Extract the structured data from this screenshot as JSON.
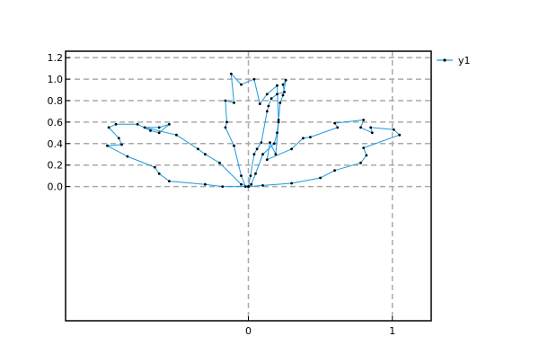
{
  "chart_data": {
    "type": "line",
    "title": "",
    "xlabel": "",
    "ylabel": "",
    "xlim": [
      -1.27,
      1.27
    ],
    "ylim": [
      -1.25,
      1.26
    ],
    "x_ticks": [
      0,
      1
    ],
    "x_tick_labels": [
      "0",
      "1"
    ],
    "y_ticks": [
      0.0,
      0.2,
      0.4,
      0.6,
      0.8,
      1.0,
      1.2
    ],
    "y_tick_labels": [
      "0.0",
      "0.2",
      "0.4",
      "0.6",
      "0.8",
      "1.0",
      "1.2"
    ],
    "grid": true,
    "grid_style": "dashed",
    "legend_position": "outside-right",
    "colors": {
      "line": "#1a9be0",
      "marker": "#000000",
      "grid": "#aaaaaa",
      "axes": "#000000",
      "background": "#ffffff"
    },
    "series": [
      {
        "name": "y1",
        "x": [
          0.0,
          0.015,
          0.025,
          0.045,
          0.06,
          0.12,
          0.16,
          0.18,
          0.19,
          0.2,
          0.22,
          0.24,
          0.25,
          0.26,
          0.28,
          0.15,
          0.16,
          0.13,
          0.07,
          0.02,
          0.01,
          -0.02,
          -0.05,
          -0.1,
          -0.1,
          -0.03,
          0.0,
          -0.03,
          -0.1,
          -0.15,
          -0.16,
          -0.17,
          -0.16,
          -0.17,
          -0.24,
          -0.22,
          -0.18,
          -0.12,
          -0.06,
          -0.04,
          0.0,
          0.05,
          0.07,
          0.1,
          0.18,
          0.24,
          0.3,
          0.36,
          0.38,
          0.5,
          0.52,
          0.55,
          0.62,
          0.58,
          0.8,
          0.82,
          0.85,
          0.86,
          1.0,
          1.05,
          0.82,
          0.78,
          0.6,
          0.45,
          0.3,
          0.2,
          0.15,
          0.1,
          0.05,
          0.01
        ],
        "y": [
          0.0,
          0.03,
          0.1,
          0.22,
          0.28,
          0.33,
          0.42,
          0.45,
          0.46,
          0.48,
          0.52,
          0.55,
          0.58,
          0.62,
          0.7,
          0.76,
          0.8,
          0.86,
          0.92,
          0.97,
          1.0,
          0.98,
          1.05,
          0.8,
          0.8,
          0.82,
          0.55,
          0.5,
          0.42,
          0.55,
          0.6,
          0.43,
          0.38,
          0.3,
          0.2,
          0.12,
          0.07,
          0.04,
          0.02,
          0.01,
          0.0,
          0.02,
          0.05,
          0.1,
          0.18,
          0.28,
          0.34,
          0.35,
          0.37,
          0.55,
          0.58,
          0.6,
          0.62,
          0.6,
          0.55,
          0.58,
          0.52,
          0.52,
          0.55,
          0.48,
          0.32,
          0.28,
          0.23,
          0.15,
          0.1,
          0.07,
          0.04,
          0.02,
          0.01,
          0.0
        ]
      }
    ],
    "trace": [
      [
        0.0,
        0.0
      ],
      [
        0.015,
        0.1
      ],
      [
        0.04,
        0.3
      ],
      [
        0.06,
        0.35
      ],
      [
        0.09,
        0.41
      ],
      [
        0.13,
        0.7
      ],
      [
        0.14,
        0.75
      ],
      [
        0.16,
        0.82
      ],
      [
        0.2,
        0.86
      ],
      [
        0.25,
        0.88
      ],
      [
        0.24,
        0.95
      ],
      [
        0.26,
        0.99
      ],
      [
        0.24,
        0.85
      ],
      [
        0.22,
        0.78
      ],
      [
        0.21,
        0.62
      ],
      [
        0.2,
        0.5
      ],
      [
        0.18,
        0.4
      ],
      [
        0.1,
        0.3
      ],
      [
        0.05,
        0.12
      ],
      [
        0.02,
        0.02
      ],
      [
        -0.0,
        0.0
      ],
      [
        -0.02,
        0.0
      ],
      [
        -0.05,
        0.1
      ],
      [
        -0.1,
        0.38
      ],
      [
        -0.16,
        0.55
      ],
      [
        -0.15,
        0.6
      ],
      [
        -0.16,
        0.8
      ],
      [
        -0.1,
        0.78
      ],
      [
        -0.12,
        1.05
      ],
      [
        -0.05,
        0.95
      ],
      [
        0.04,
        1.0
      ],
      [
        0.08,
        0.77
      ],
      [
        0.13,
        0.86
      ],
      [
        0.2,
        0.94
      ],
      [
        0.21,
        0.6
      ],
      [
        0.19,
        0.3
      ],
      [
        0.15,
        0.41
      ],
      [
        0.13,
        0.25
      ],
      [
        0.3,
        0.35
      ],
      [
        0.38,
        0.45
      ],
      [
        0.43,
        0.46
      ],
      [
        0.62,
        0.55
      ],
      [
        0.6,
        0.59
      ],
      [
        0.8,
        0.62
      ],
      [
        0.78,
        0.55
      ],
      [
        0.86,
        0.5
      ],
      [
        0.85,
        0.55
      ],
      [
        1.01,
        0.53
      ],
      [
        1.05,
        0.48
      ],
      [
        0.8,
        0.36
      ],
      [
        0.82,
        0.29
      ],
      [
        0.78,
        0.22
      ],
      [
        0.6,
        0.15
      ],
      [
        0.5,
        0.08
      ],
      [
        0.3,
        0.03
      ],
      [
        0.1,
        0.01
      ],
      [
        0.0,
        0.0
      ],
      [
        -0.18,
        0.0
      ],
      [
        -0.3,
        0.02
      ],
      [
        -0.55,
        0.05
      ],
      [
        -0.62,
        0.12
      ],
      [
        -0.65,
        0.18
      ],
      [
        -0.84,
        0.28
      ],
      [
        -0.98,
        0.38
      ],
      [
        -0.88,
        0.39
      ],
      [
        -0.9,
        0.45
      ],
      [
        -0.97,
        0.55
      ],
      [
        -0.92,
        0.58
      ],
      [
        -0.77,
        0.58
      ],
      [
        -0.68,
        0.52
      ],
      [
        -0.62,
        0.5
      ],
      [
        -0.55,
        0.58
      ],
      [
        -0.62,
        0.55
      ],
      [
        -0.72,
        0.55
      ],
      [
        -0.5,
        0.48
      ],
      [
        -0.35,
        0.35
      ],
      [
        -0.3,
        0.3
      ],
      [
        -0.2,
        0.22
      ],
      [
        -0.05,
        0.02
      ],
      [
        0.0,
        0.0
      ]
    ]
  },
  "legend": {
    "items": [
      {
        "label": "y1"
      }
    ]
  }
}
